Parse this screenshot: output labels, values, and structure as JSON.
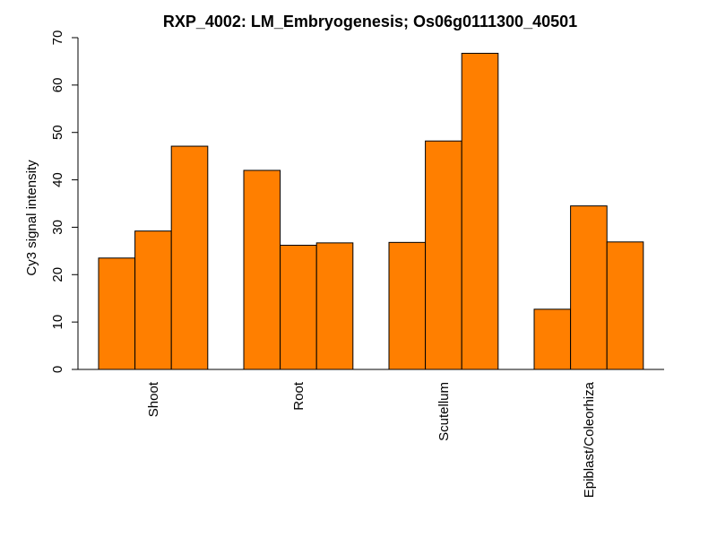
{
  "chart_data": {
    "type": "bar",
    "title": "RXP_4002: LM_Embryogenesis; Os06g0111300_40501",
    "xlabel": "",
    "ylabel": "Cy3 signal intensity",
    "ylim": [
      0,
      70
    ],
    "yticks": [
      0,
      10,
      20,
      30,
      40,
      50,
      60,
      70
    ],
    "grid": false,
    "legend": "none",
    "bar_color": "#FF7F00",
    "categories": [
      "Shoot",
      "Root",
      "Scutellum",
      "Epiblast/Coleorhiza"
    ],
    "values": [
      [
        23.5,
        29.2,
        47.1
      ],
      [
        42.0,
        26.2,
        26.7
      ],
      [
        26.8,
        48.2,
        66.7
      ],
      [
        12.7,
        34.5,
        26.9
      ]
    ]
  }
}
